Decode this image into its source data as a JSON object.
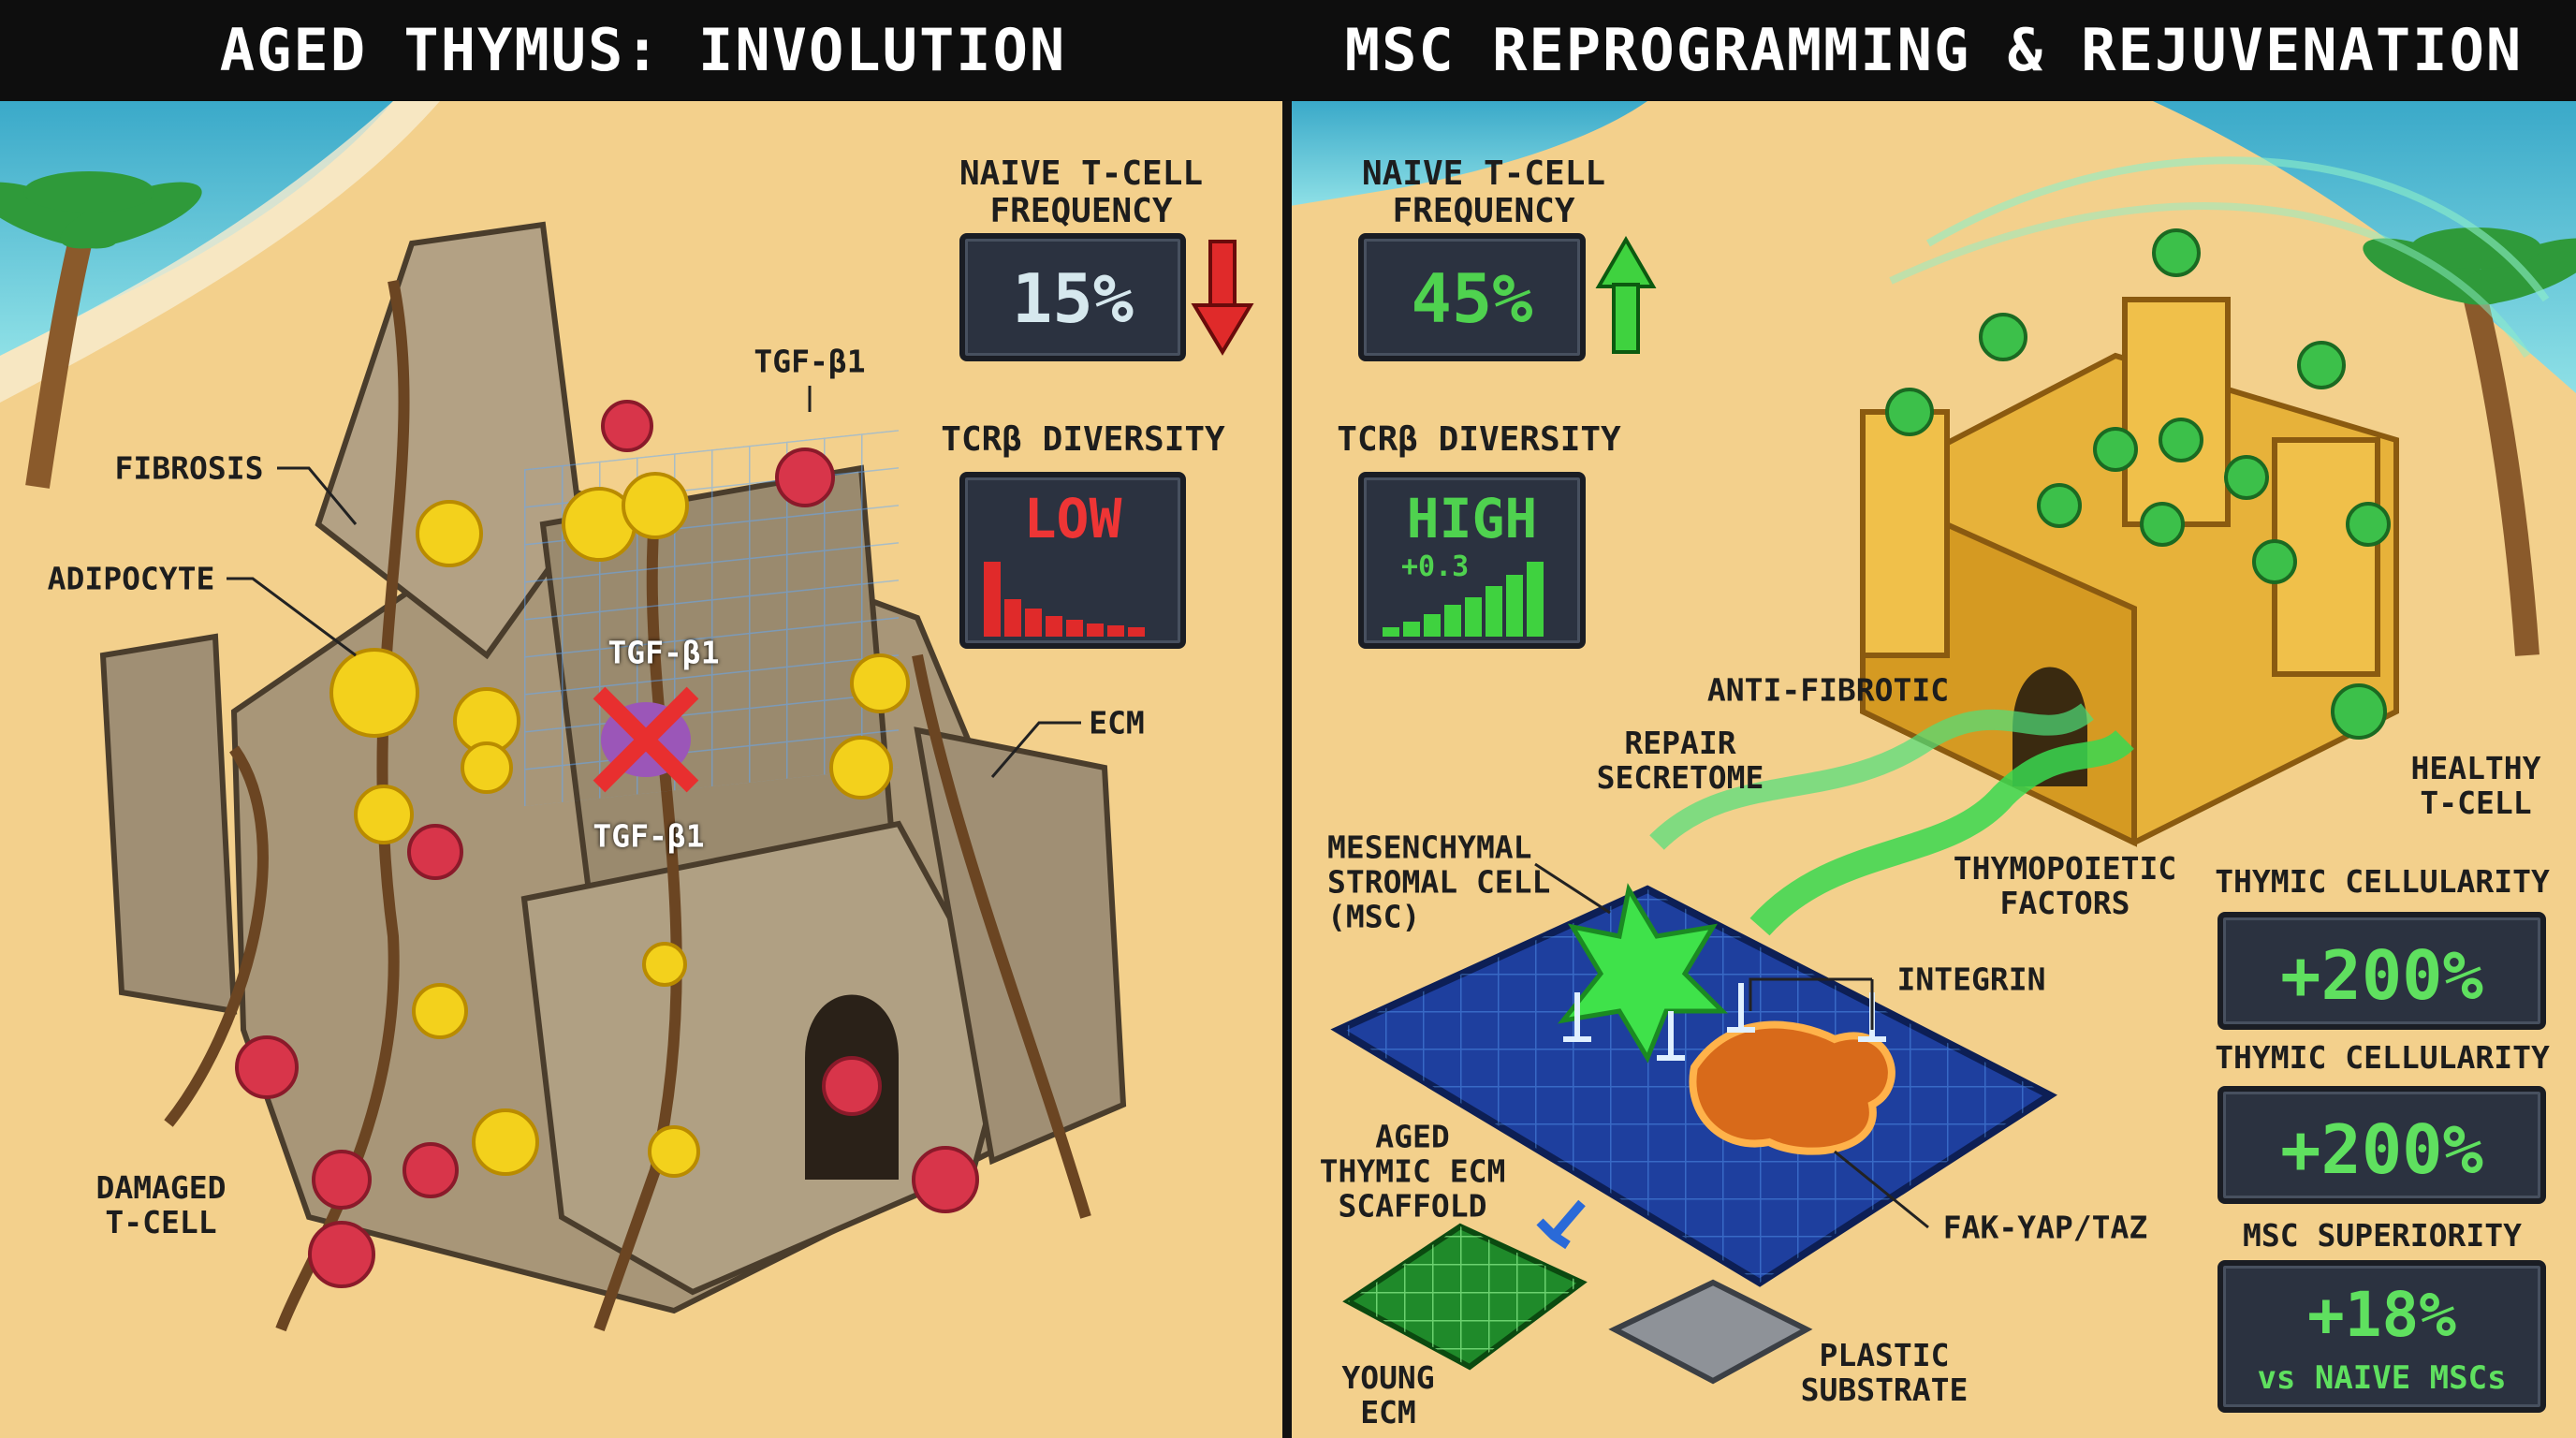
{
  "left_panel": {
    "title": "AGED THYMUS: INVOLUTION",
    "naive_tcell": {
      "label": [
        "NAIVE T-CELL",
        "FREQUENCY"
      ],
      "value": "15%"
    },
    "tcr": {
      "label": "TCRβ DIVERSITY",
      "value": "LOW"
    },
    "labels": {
      "fibrosis": "FIBROSIS",
      "adipocyte": "ADIPOCYTE",
      "tgf_top": "TGF-β1",
      "tgf_mid": "TGF-β1",
      "tgf_low": "TGF-β1",
      "ecm": "ECM",
      "damaged": [
        "DAMAGED",
        "T-CELL"
      ]
    }
  },
  "right_panel": {
    "title": "MSC REPROGRAMMING & REJUVENATION",
    "naive_tcell": {
      "label": [
        "NAIVE T-CELL",
        "FREQUENCY"
      ],
      "value": "45%"
    },
    "tcr": {
      "label": "TCRβ DIVERSITY",
      "value": "HIGH",
      "delta": "+0.3"
    },
    "labels": {
      "anti_fibrotic": "ANTI-FIBROTIC",
      "secretome": [
        "REPAIR",
        "SECRETOME"
      ],
      "healthy": [
        "HEALTHY",
        "T-CELL"
      ],
      "thymopoietic": [
        "THYMOPOIETIC",
        "FACTORS"
      ],
      "msc": [
        "MESENCHYMAL",
        "STROMAL CELL",
        "(MSC)"
      ],
      "integrin": "INTEGRIN",
      "aged_ecm": [
        "AGED",
        "THYMIC ECM",
        "SCAFFOLD"
      ],
      "fak": "FAK-YAP/TAZ",
      "young_ecm": [
        "YOUNG",
        "ECM"
      ],
      "plastic": [
        "PLASTIC",
        "SUBSTRATE"
      ]
    },
    "metrics": [
      {
        "label": "THYMIC CELLULARITY",
        "value": "+200%"
      },
      {
        "label": "THYMIC CELLULARITY",
        "value": "+200%"
      },
      {
        "label": "MSC SUPERIORITY",
        "value": "+18%",
        "note": "vs NAIVE MSCs"
      }
    ]
  }
}
